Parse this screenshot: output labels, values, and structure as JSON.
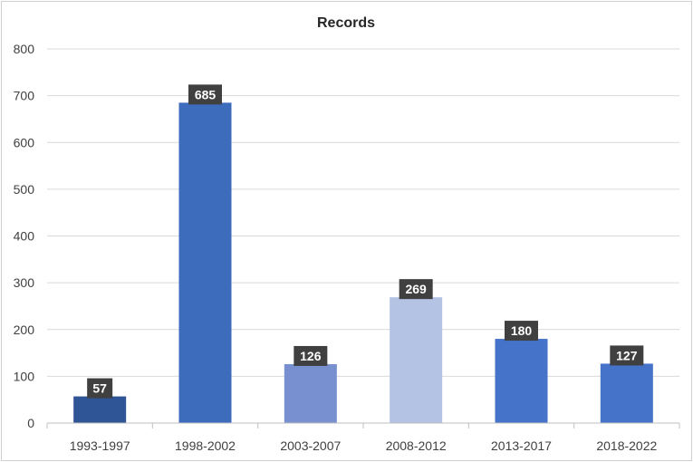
{
  "chart_data": {
    "type": "bar",
    "title": "Records",
    "categories": [
      "1993-1997",
      "1998-2002",
      "2003-2007",
      "2008-2012",
      "2013-2017",
      "2018-2022"
    ],
    "values": [
      57,
      685,
      126,
      269,
      180,
      127
    ],
    "bar_colors": [
      "#2f5597",
      "#3d6cbd",
      "#7990d0",
      "#b4c2e4",
      "#4473c9",
      "#4473c9"
    ],
    "ylim": [
      0,
      800
    ],
    "yticks": [
      0,
      100,
      200,
      300,
      400,
      500,
      600,
      700,
      800
    ],
    "grid": true,
    "xlabel": "",
    "ylabel": "",
    "data_label_bg": "#404040"
  }
}
